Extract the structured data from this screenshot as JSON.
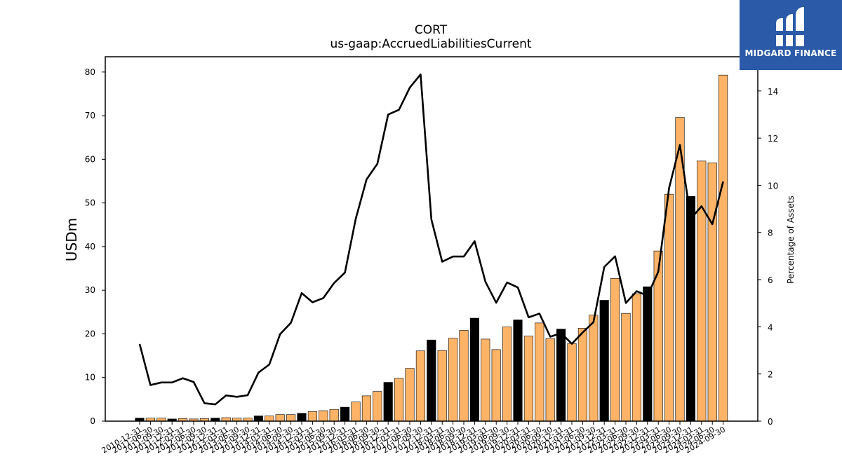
{
  "brand": {
    "name": "MIDGARD FINANCE",
    "logo_icon": "midgard-logo-icon",
    "background": "#2a5aa8"
  },
  "chart_data": {
    "type": "bar",
    "title": "CORT",
    "subtitle": "us-gaap:AccruedLiabilitiesCurrent",
    "xlabel": "",
    "ylabel": "USDm",
    "ylabel_right": "Percentage of Assets",
    "ylim": [
      0,
      83.5
    ],
    "ylim_right": [
      0,
      15.45
    ],
    "yticks": [
      0,
      10,
      20,
      30,
      40,
      50,
      60,
      70,
      80
    ],
    "yticks_right": [
      0,
      2,
      4,
      6,
      8,
      10,
      12,
      14
    ],
    "colors": {
      "q4_bar": "#000000",
      "other_bar": "#ffb366",
      "line": "#000000"
    },
    "categories": [
      "2010-12-31",
      "2011-06-30",
      "2011-09-30",
      "2011-12-31",
      "2012-03-31",
      "2012-06-30",
      "2012-09-30",
      "2012-12-31",
      "2013-03-31",
      "2013-06-30",
      "2013-09-30",
      "2013-12-31",
      "2014-03-31",
      "2014-06-30",
      "2014-09-30",
      "2014-12-31",
      "2015-03-31",
      "2015-06-30",
      "2015-09-30",
      "2015-12-31",
      "2016-03-31",
      "2016-06-30",
      "2016-09-30",
      "2016-12-31",
      "2017-03-31",
      "2017-06-30",
      "2017-09-30",
      "2017-12-31",
      "2018-03-31",
      "2018-06-30",
      "2018-09-30",
      "2018-12-31",
      "2019-03-31",
      "2019-06-30",
      "2019-09-30",
      "2019-12-31",
      "2020-03-31",
      "2020-06-30",
      "2020-09-30",
      "2020-12-31",
      "2021-03-31",
      "2021-06-30",
      "2021-09-30",
      "2021-12-31",
      "2022-03-31",
      "2022-06-30",
      "2022-09-30",
      "2022-12-31",
      "2023-03-31",
      "2023-06-30",
      "2023-09-30",
      "2023-12-31",
      "2024-03-31",
      "2024-06-30",
      "2024-09-30"
    ],
    "series": [
      {
        "name": "",
        "type": "bar",
        "axis": "left",
        "values": [
          0.7,
          0.7,
          0.7,
          0.5,
          0.6,
          0.5,
          0.6,
          0.7,
          0.8,
          0.7,
          0.7,
          1.2,
          1.2,
          1.5,
          1.5,
          1.8,
          2.2,
          2.4,
          2.7,
          3.2,
          4.4,
          5.8,
          6.8,
          8.9,
          9.8,
          12.1,
          16.1,
          18.6,
          16.2,
          19.0,
          20.8,
          23.6,
          18.8,
          16.4,
          21.6,
          23.2,
          19.5,
          22.5,
          18.9,
          21.1,
          17.8,
          21.3,
          24.3,
          27.7,
          32.7,
          24.7,
          29.2,
          30.8,
          39.0,
          52.0,
          69.6,
          51.5,
          59.6,
          59.2,
          79.3
        ]
      },
      {
        "name": "",
        "type": "line",
        "axis": "right",
        "values": [
          3.27,
          1.53,
          1.64,
          1.64,
          1.82,
          1.66,
          0.76,
          0.71,
          1.09,
          1.03,
          1.1,
          2.06,
          2.4,
          3.69,
          4.17,
          5.43,
          5.04,
          5.22,
          5.86,
          6.3,
          8.58,
          10.25,
          10.91,
          13.0,
          13.2,
          14.14,
          14.7,
          8.55,
          6.76,
          6.98,
          6.98,
          7.63,
          5.91,
          5.02,
          5.88,
          5.67,
          4.4,
          4.56,
          3.58,
          3.73,
          3.28,
          3.76,
          4.2,
          6.54,
          6.99,
          5.01,
          5.51,
          5.32,
          6.34,
          9.89,
          11.71,
          8.58,
          9.11,
          8.35,
          10.16
        ]
      }
    ],
    "grid": false,
    "legend": "none"
  }
}
